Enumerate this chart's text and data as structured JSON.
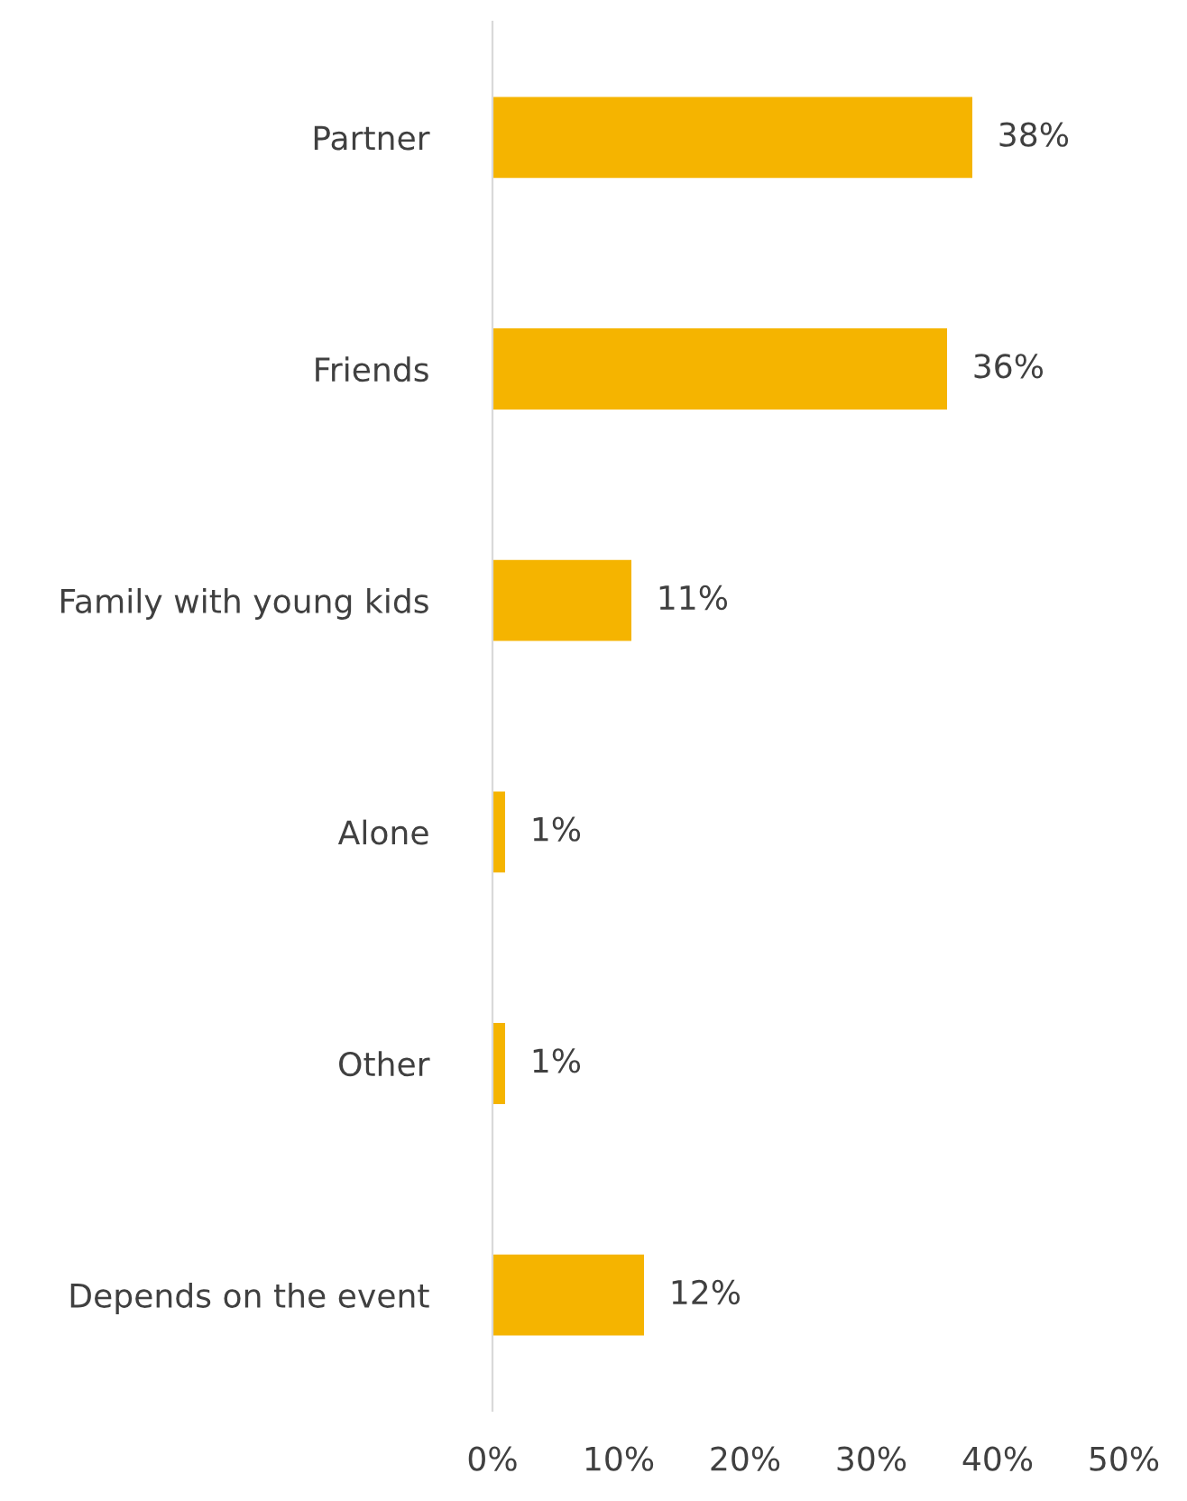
{
  "chart_data": {
    "type": "bar",
    "orientation": "horizontal",
    "categories": [
      "Partner",
      "Friends",
      "Family with young kids",
      "Alone",
      "Other",
      "Depends on the event"
    ],
    "values": [
      38,
      36,
      11,
      1,
      1,
      12
    ],
    "value_labels": [
      "38%",
      "36%",
      "11%",
      "1%",
      "1%",
      "12%"
    ],
    "color": "#f5b400",
    "xlim": [
      0,
      50
    ],
    "xticks": [
      {
        "value": 0,
        "label": "0%"
      },
      {
        "value": 10,
        "label": "10%"
      },
      {
        "value": 20,
        "label": "20%"
      },
      {
        "value": 30,
        "label": "30%"
      },
      {
        "value": 40,
        "label": "40%"
      },
      {
        "value": 50,
        "label": "50%"
      }
    ],
    "grid": false
  }
}
